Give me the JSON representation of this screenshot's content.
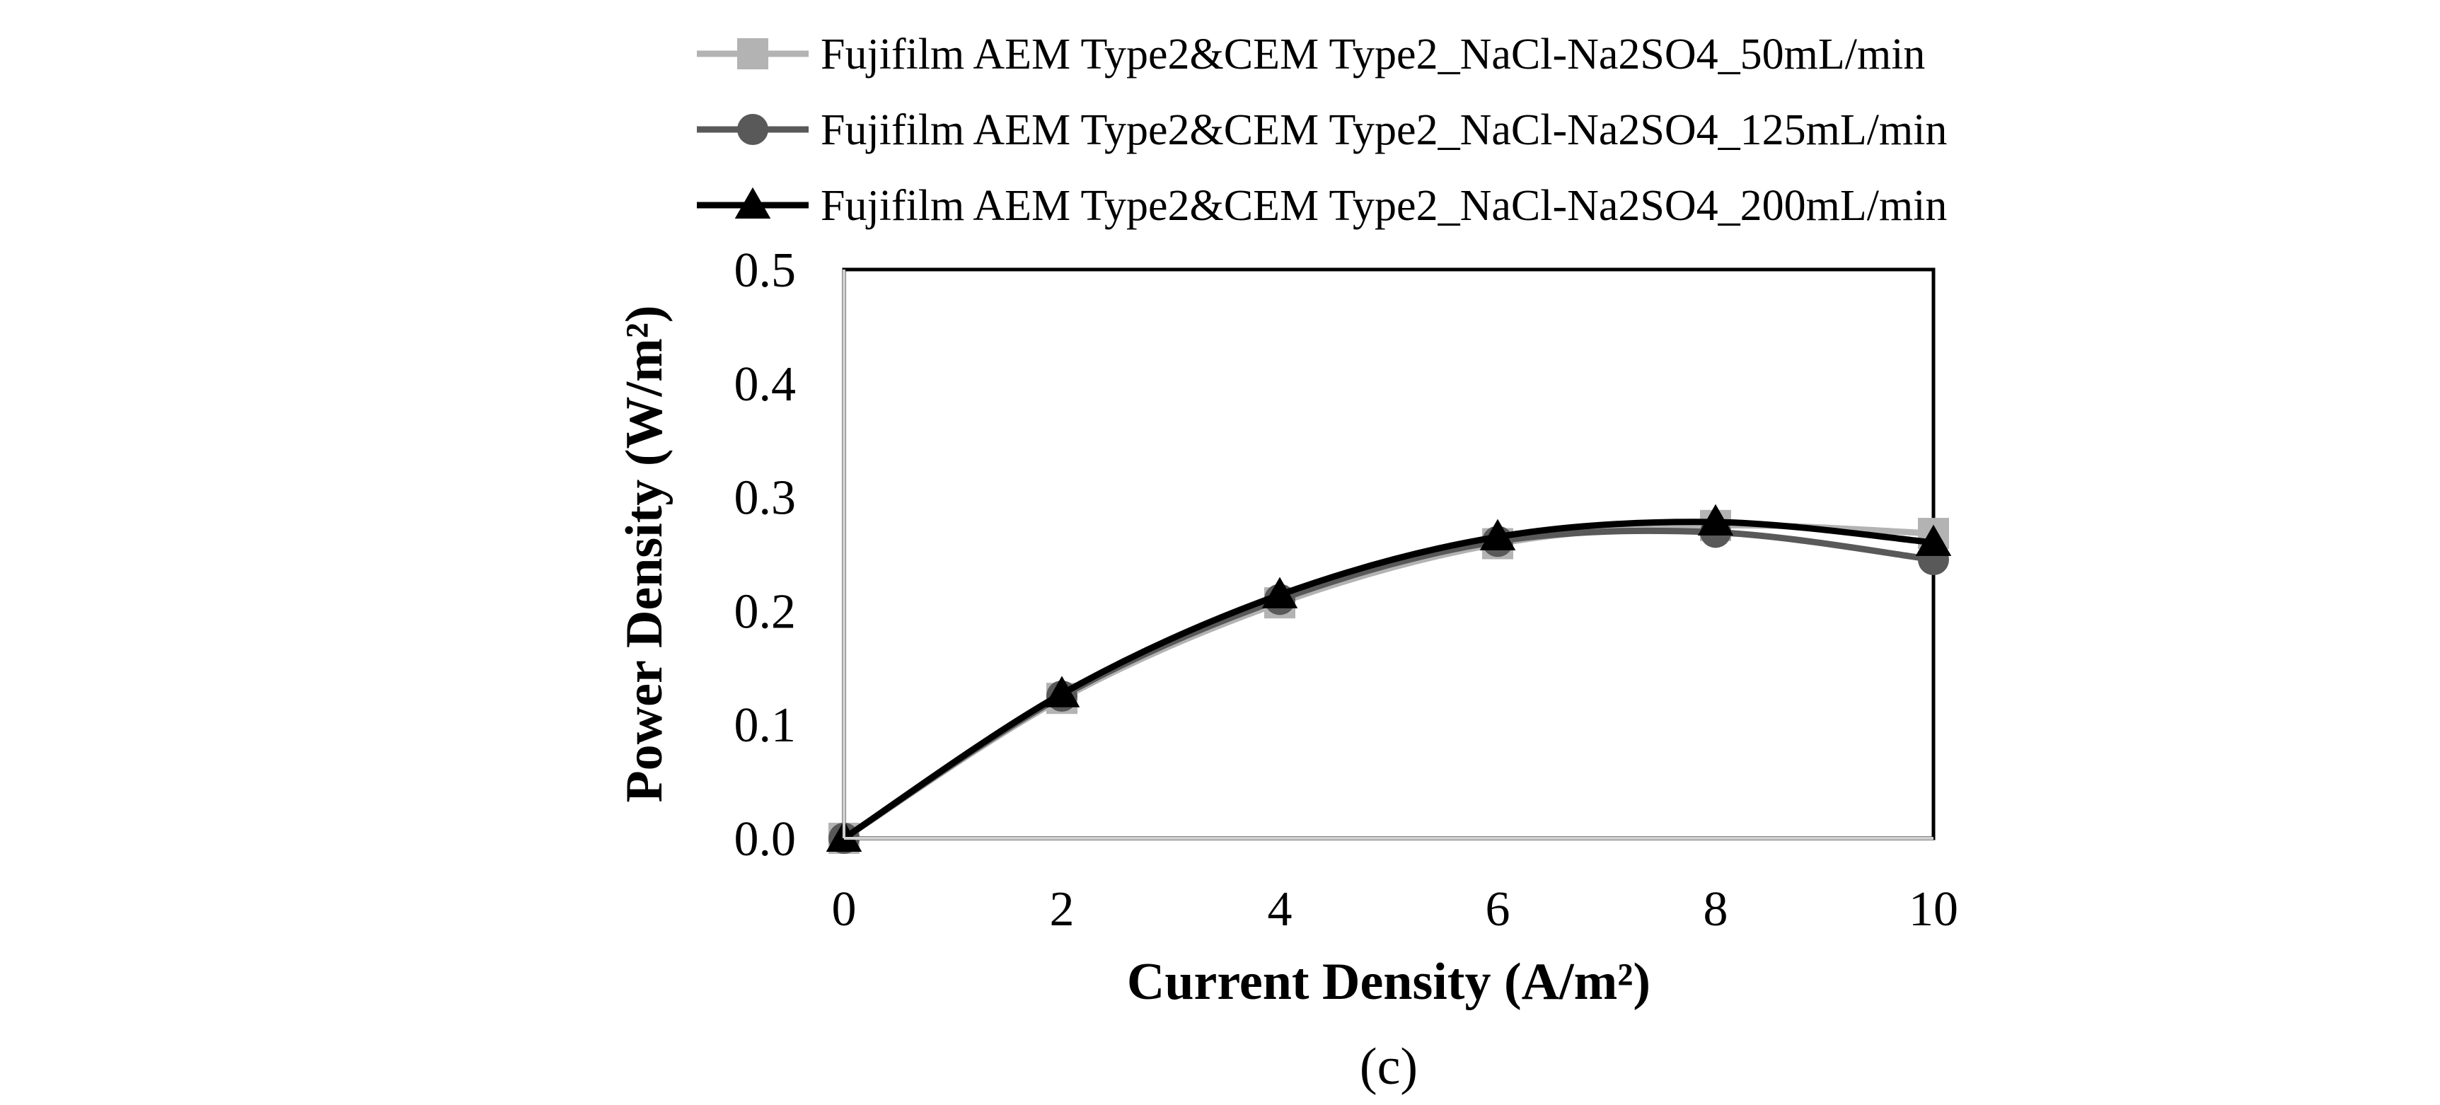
{
  "chart_data": {
    "type": "line",
    "xlabel": "Current Density (A/m²)",
    "ylabel": "Power Density (W/m²)",
    "panel_label": "(c)",
    "xlim": [
      0,
      10
    ],
    "ylim": [
      0,
      0.5
    ],
    "xticks": [
      "0",
      "2",
      "4",
      "6",
      "8",
      "10"
    ],
    "yticks": [
      "0.0",
      "0.1",
      "0.2",
      "0.3",
      "0.4",
      "0.5"
    ],
    "grid": false,
    "legend_position": "top",
    "x": [
      0,
      2,
      4,
      6,
      8,
      10
    ],
    "series": [
      {
        "name": "Fujifilm AEM Type2&CEM Type2_NaCl-Na2SO4_50mL/min",
        "values": [
          0.0,
          0.123,
          0.207,
          0.259,
          0.275,
          0.268
        ],
        "color": "#b3b3b3",
        "marker": "square"
      },
      {
        "name": "Fujifilm AEM Type2&CEM Type2_NaCl-Na2SO4_125mL/min",
        "values": [
          0.0,
          0.125,
          0.21,
          0.261,
          0.269,
          0.245
        ],
        "color": "#595959",
        "marker": "circle"
      },
      {
        "name": "Fujifilm AEM Type2&CEM Type2_NaCl-Na2SO4_200mL/min",
        "values": [
          0.0,
          0.127,
          0.214,
          0.265,
          0.278,
          0.26
        ],
        "color": "#000000",
        "marker": "triangle"
      }
    ]
  }
}
